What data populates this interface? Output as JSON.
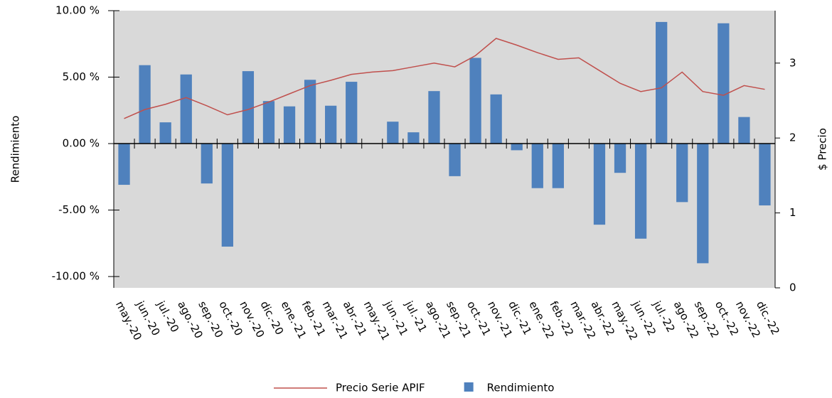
{
  "chart_data": {
    "type": "bar",
    "y_label": "Rendimiento",
    "y2_label": "$ Precio",
    "categories": [
      "may.-20",
      "jun.-20",
      "jul.-20",
      "ago.-20",
      "sep.-20",
      "oct.-20",
      "nov.-20",
      "dic.-20",
      "ene.-21",
      "feb.-21",
      "mar.-21",
      "abr.-21",
      "may.-21",
      "jun.-21",
      "jul.-21",
      "ago.-21",
      "sep.-21",
      "oct.-21",
      "nov.-21",
      "dic.-21",
      "ene.-22",
      "feb.-22",
      "mar.-22",
      "abr.-22",
      "may.-22",
      "jun.-22",
      "jul.-22",
      "ago.-22",
      "sep.-22",
      "oct.-22",
      "nov.-22",
      "dic.-22"
    ],
    "series": [
      {
        "name": "Precio Serie APIF",
        "type": "line",
        "axis": "y2",
        "color": "#c0504d",
        "values": [
          2.26,
          2.38,
          2.45,
          2.54,
          2.43,
          2.31,
          2.38,
          2.48,
          2.59,
          2.7,
          2.77,
          2.85,
          2.88,
          2.9,
          2.95,
          3.0,
          2.95,
          3.1,
          3.33,
          3.24,
          3.14,
          3.05,
          3.07,
          2.9,
          2.73,
          2.62,
          2.67,
          2.88,
          2.62,
          2.57,
          2.7,
          2.65
        ]
      },
      {
        "name": "Rendimiento",
        "type": "bar",
        "color": "#4f81bd",
        "values": [
          -3.1,
          5.9,
          1.6,
          5.2,
          -3.0,
          -7.75,
          5.45,
          3.2,
          2.8,
          4.8,
          2.85,
          4.65,
          0,
          1.65,
          0.85,
          3.95,
          -2.45,
          6.45,
          3.7,
          -0.5,
          -3.35,
          -3.35,
          0,
          -6.1,
          -2.2,
          -7.15,
          9.15,
          -4.4,
          -9.0,
          9.05,
          2.0,
          -4.65
        ]
      }
    ],
    "ylim": [
      -10.85,
      10
    ],
    "yticks": [
      {
        "value": -10,
        "label": "-10.00 %"
      },
      {
        "value": -5,
        "label": "-5.00 %"
      },
      {
        "value": 0,
        "label": "0.00 %"
      },
      {
        "value": 5,
        "label": "5.00 %"
      },
      {
        "value": 10,
        "label": "10.00 %"
      }
    ],
    "y2lim": [
      0,
      3.7
    ],
    "y2ticks": [
      0,
      1,
      2,
      3
    ],
    "background": "#d9d9d9"
  }
}
